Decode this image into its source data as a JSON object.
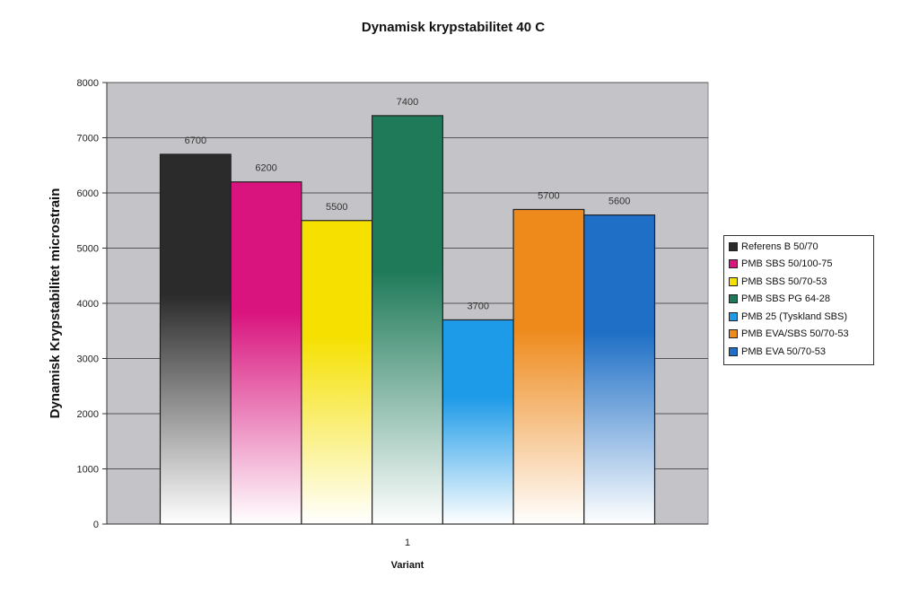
{
  "chart_data": {
    "type": "bar",
    "title": "Dynamisk krypstabilitet 40 C",
    "xlabel": "Variant",
    "ylabel": "Dynamisk Krypstabilitet  microstrain",
    "categories": [
      "1"
    ],
    "ylim": [
      0,
      8000
    ],
    "yticks": [
      0,
      1000,
      2000,
      3000,
      4000,
      5000,
      6000,
      7000,
      8000
    ],
    "grid": true,
    "legend_position": "right",
    "series": [
      {
        "name": "Referens B 50/70",
        "values": [
          6700
        ],
        "color": "#2b2b2b"
      },
      {
        "name": "PMB SBS 50/100-75",
        "values": [
          6200
        ],
        "color": "#d9147e"
      },
      {
        "name": "PMB SBS 50/70-53",
        "values": [
          5500
        ],
        "color": "#f5e000"
      },
      {
        "name": "PMB SBS PG 64-28",
        "values": [
          7400
        ],
        "color": "#1f7a5a"
      },
      {
        "name": "PMB 25 (Tyskland SBS)",
        "values": [
          3700
        ],
        "color": "#1e9be8"
      },
      {
        "name": "PMB EVA/SBS 50/70-53",
        "values": [
          5700
        ],
        "color": "#ee8a1c"
      },
      {
        "name": "PMB EVA 50/70-53",
        "values": [
          5600
        ],
        "color": "#1f6fc6"
      }
    ]
  }
}
